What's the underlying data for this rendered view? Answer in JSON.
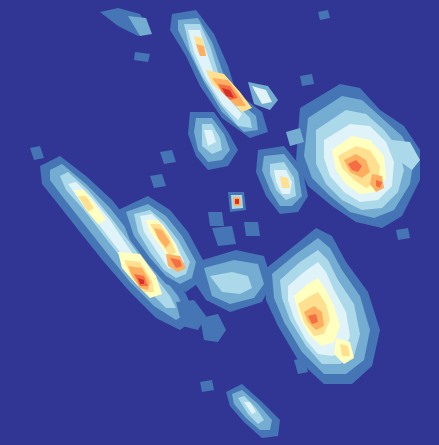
{
  "map": {
    "background_color": "#313695",
    "palette": {
      "level_0": "#313695",
      "level_1": "#4575b4",
      "level_2": "#74add1",
      "level_3": "#abd9e9",
      "level_4": "#e0f3f8",
      "level_5": "#ffffbf",
      "level_6": "#fee090",
      "level_7": "#fdae61",
      "level_8": "#f46d43",
      "level_9": "#d73027"
    }
  }
}
